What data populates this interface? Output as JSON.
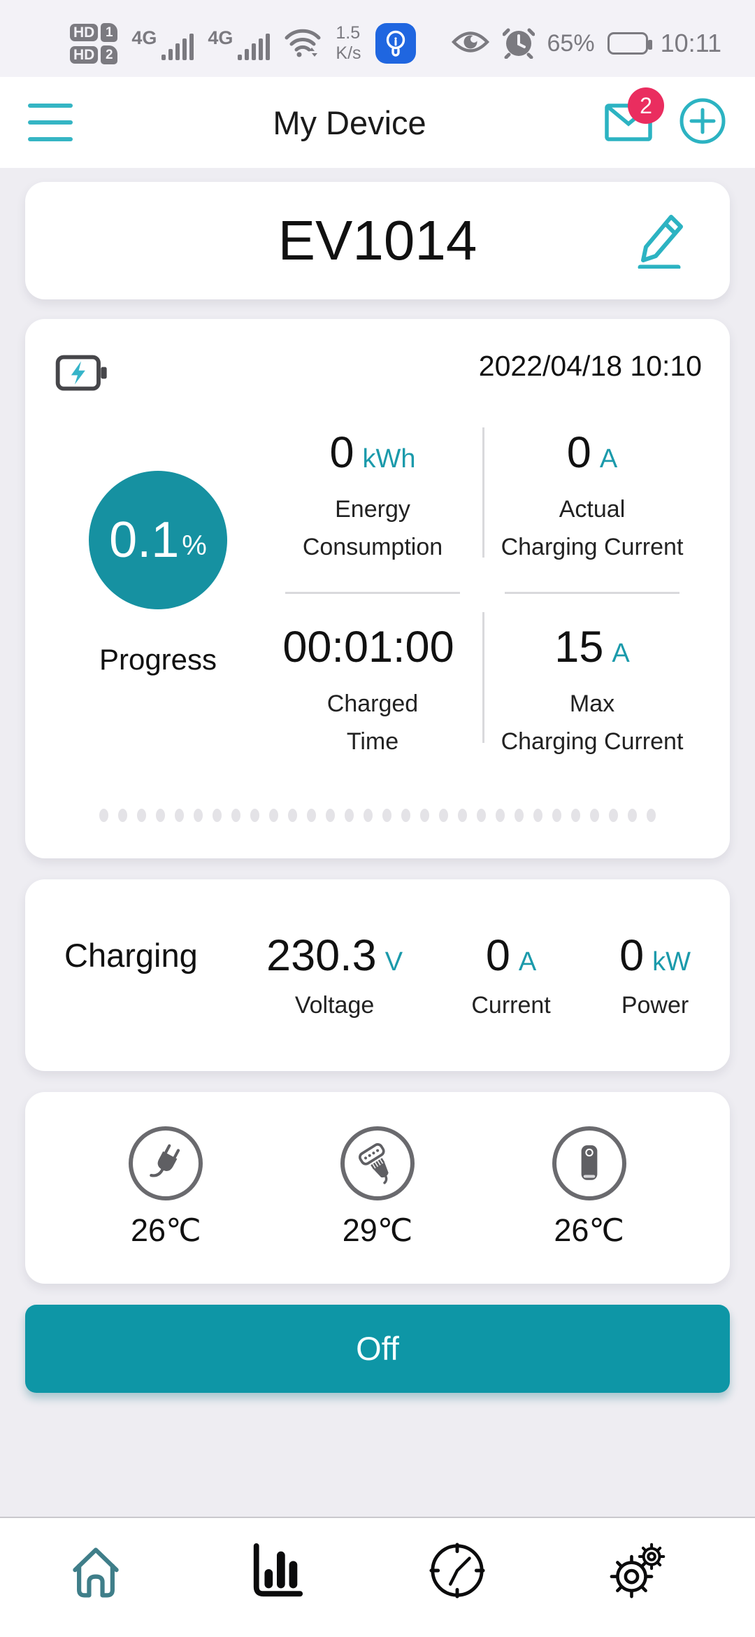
{
  "colors": {
    "accent_teal": "#1b9aab",
    "accent_bright_teal": "#2cb3c2",
    "progress_circle": "#1691a1",
    "button_teal": "#0e96a6",
    "badge_red": "#ea2d5f",
    "notification_blue": "#1f66e0"
  },
  "status_bar": {
    "sim1_label": "HD",
    "sim1_num": "1",
    "sim2_label": "HD",
    "sim2_num": "2",
    "network1": "4G",
    "network2": "4G",
    "speed_value": "1.5",
    "speed_unit": "K/s",
    "battery_percent": "65%",
    "time": "10:11"
  },
  "header": {
    "title": "My Device",
    "unread_count": "2"
  },
  "device": {
    "name": "EV1014"
  },
  "session": {
    "timestamp": "2022/04/18 10:10",
    "progress_value": "0.1",
    "progress_unit": "%",
    "progress_label": "Progress",
    "stats": [
      {
        "value": "0",
        "unit": "kWh",
        "label_line1": "Energy",
        "label_line2": "Consumption"
      },
      {
        "value": "0",
        "unit": "A",
        "label_line1": "Actual",
        "label_line2": "Charging Current"
      },
      {
        "value": "00:01:00",
        "unit": "",
        "label_line1": "Charged",
        "label_line2": "Time"
      },
      {
        "value": "15",
        "unit": "A",
        "label_line1": "Max",
        "label_line2": "Charging Current"
      }
    ]
  },
  "charging": {
    "state_label": "Charging",
    "metrics": [
      {
        "value": "230.3",
        "unit": "V",
        "label": "Voltage"
      },
      {
        "value": "0",
        "unit": "A",
        "label": "Current"
      },
      {
        "value": "0",
        "unit": "kW",
        "label": "Power"
      }
    ]
  },
  "temperatures": [
    {
      "part": "plug",
      "value": "26℃"
    },
    {
      "part": "connector",
      "value": "29℃"
    },
    {
      "part": "charger-box",
      "value": "26℃"
    }
  ],
  "power_button": {
    "label": "Off"
  }
}
